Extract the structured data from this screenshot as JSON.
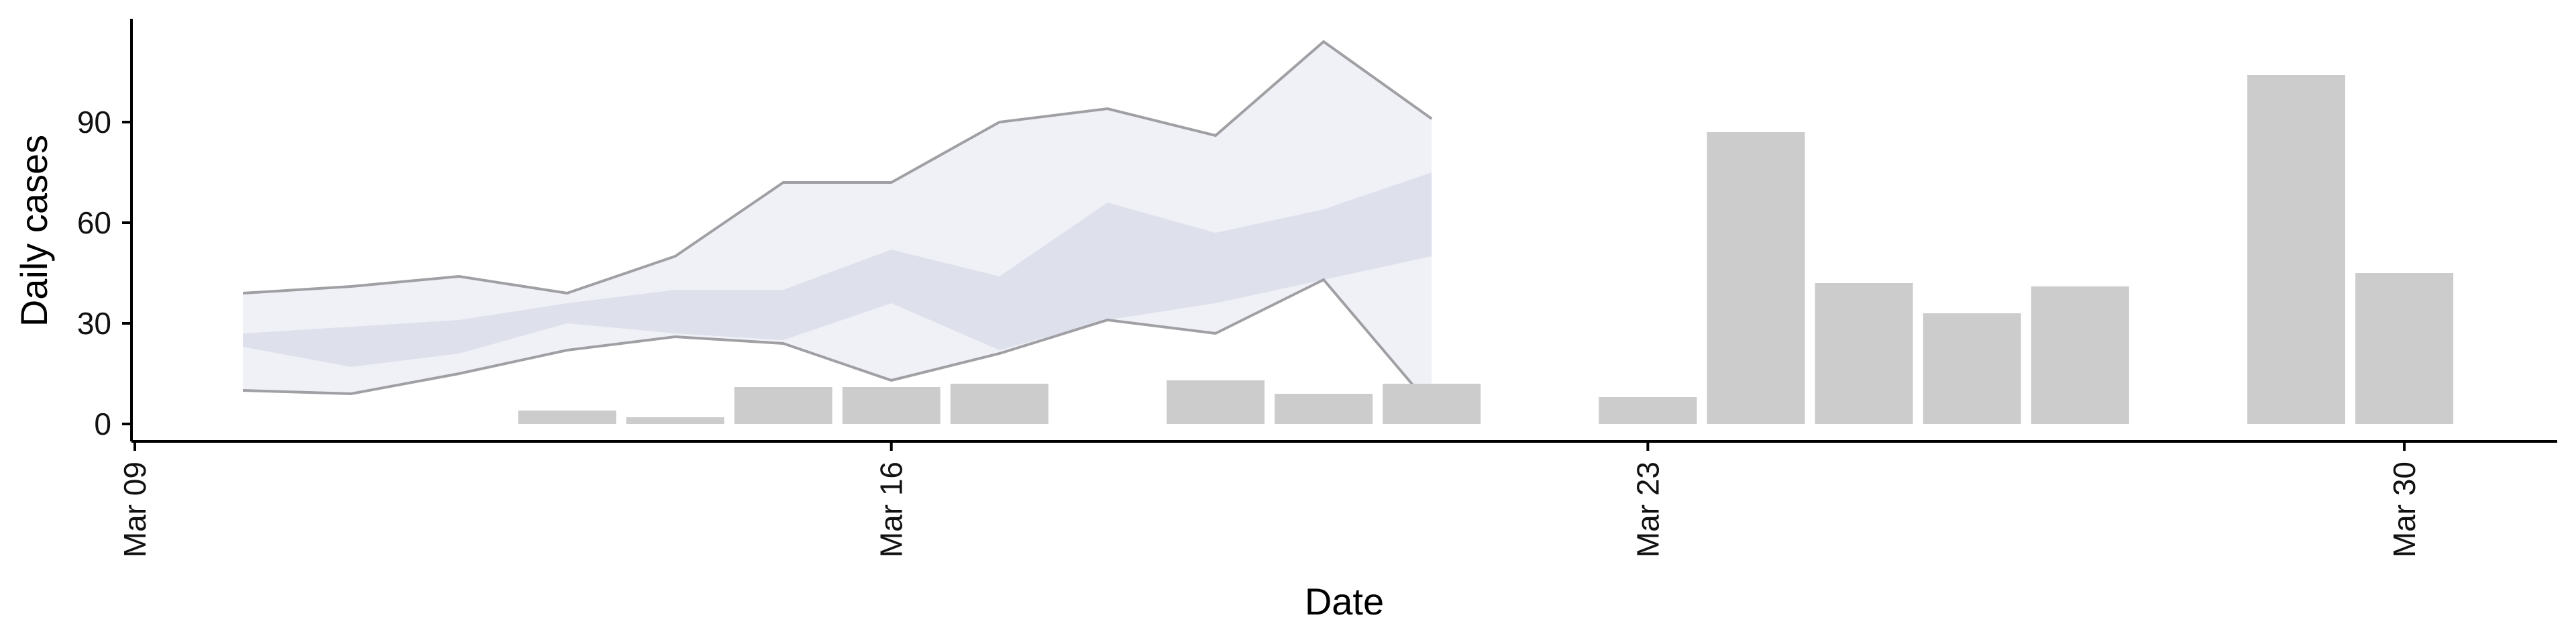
{
  "chart_data": {
    "type": "bar",
    "xlabel": "Date",
    "ylabel": "Daily cases",
    "x_ticks": [
      {
        "date": "2020-03-09",
        "label": "Mar 09"
      },
      {
        "date": "2020-03-16",
        "label": "Mar 16"
      },
      {
        "date": "2020-03-23",
        "label": "Mar 23"
      },
      {
        "date": "2020-03-30",
        "label": "Mar 30"
      }
    ],
    "y_ticks": [
      0,
      30,
      60,
      90
    ],
    "xlim": [
      "2020-03-09",
      "2020-03-31"
    ],
    "ylim": [
      -5,
      120
    ],
    "grid": false,
    "legend": "none",
    "bars": {
      "color": "#cccccc",
      "points": [
        {
          "date": "2020-03-13",
          "value": 4
        },
        {
          "date": "2020-03-14",
          "value": 2
        },
        {
          "date": "2020-03-15",
          "value": 11
        },
        {
          "date": "2020-03-16",
          "value": 11
        },
        {
          "date": "2020-03-17",
          "value": 12
        },
        {
          "date": "2020-03-19",
          "value": 13
        },
        {
          "date": "2020-03-20",
          "value": 9
        },
        {
          "date": "2020-03-21",
          "value": 12
        },
        {
          "date": "2020-03-23",
          "value": 8
        },
        {
          "date": "2020-03-24",
          "value": 87
        },
        {
          "date": "2020-03-25",
          "value": 42
        },
        {
          "date": "2020-03-26",
          "value": 33
        },
        {
          "date": "2020-03-27",
          "value": 41
        },
        {
          "date": "2020-03-29",
          "value": 104
        },
        {
          "date": "2020-03-30",
          "value": 45
        }
      ]
    },
    "intervals": {
      "dates": [
        "2020-03-10",
        "2020-03-11",
        "2020-03-12",
        "2020-03-13",
        "2020-03-14",
        "2020-03-15",
        "2020-03-16",
        "2020-03-17",
        "2020-03-18",
        "2020-03-19",
        "2020-03-20",
        "2020-03-21"
      ],
      "outer_lower": [
        10,
        9,
        15,
        22,
        26,
        24,
        13,
        21,
        31,
        27,
        43,
        5
      ],
      "outer_upper": [
        39,
        41,
        44,
        39,
        50,
        72,
        72,
        90,
        94,
        86,
        114,
        91
      ],
      "inner_lower": [
        23,
        17,
        21,
        30,
        27,
        25,
        36,
        22,
        31,
        36,
        43,
        50
      ],
      "inner_upper": [
        27,
        29,
        31,
        36,
        40,
        40,
        52,
        44,
        66,
        57,
        64,
        75
      ],
      "outer_fill": "#e6e8f0",
      "inner_fill": "#c8cfdf",
      "outer_line": "#8a8a8f"
    }
  }
}
